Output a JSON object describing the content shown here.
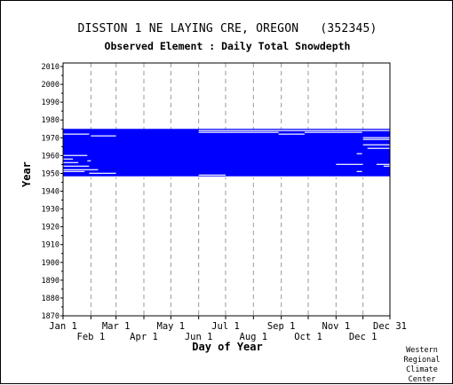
{
  "title": "DISSTON 1 NE LAYING CRE, OREGON   (352345)",
  "subtitle": "Observed Element : Daily Total Snowdepth",
  "credit": [
    "Western",
    "Regional",
    "Climate",
    "Center"
  ],
  "colors": {
    "data": "#0000ff",
    "grid": "#999999",
    "axis": "#000000"
  },
  "chart_data": {
    "type": "bar",
    "xlabel": "Day of Year",
    "ylabel": "Year",
    "xlim": [
      1,
      365
    ],
    "ylim": [
      1870,
      2012
    ],
    "yticks": [
      1870,
      1880,
      1890,
      1900,
      1910,
      1920,
      1930,
      1940,
      1950,
      1960,
      1970,
      1980,
      1990,
      2000,
      2010
    ],
    "xticks_top": [
      {
        "label": "Jan 1",
        "day": 1
      },
      {
        "label": "Mar 1",
        "day": 60
      },
      {
        "label": "May 1",
        "day": 121
      },
      {
        "label": "Jul 1",
        "day": 182
      },
      {
        "label": "Sep 1",
        "day": 244
      },
      {
        "label": "Nov 1",
        "day": 305
      },
      {
        "label": "Dec 31",
        "day": 365
      }
    ],
    "xticks_bottom": [
      {
        "label": "Feb 1",
        "day": 32
      },
      {
        "label": "Apr 1",
        "day": 91
      },
      {
        "label": "Jun 1",
        "day": 152
      },
      {
        "label": "Aug 1",
        "day": 213
      },
      {
        "label": "Oct 1",
        "day": 274
      },
      {
        "label": "Dec 1",
        "day": 335
      }
    ],
    "grid_days": [
      32,
      60,
      91,
      121,
      152,
      182,
      213,
      244,
      274,
      305,
      335
    ],
    "coverage": {
      "year_start": 1948,
      "year_end": 1975,
      "day_start": 1,
      "day_end": 365
    },
    "gaps": [
      {
        "year": 1974,
        "day_start": 152,
        "day_end": 365
      },
      {
        "year": 1973,
        "day_start": 152,
        "day_end": 241
      },
      {
        "year": 1973,
        "day_start": 270,
        "day_end": 334
      },
      {
        "year": 1972,
        "day_start": 1,
        "day_end": 30
      },
      {
        "year": 1972,
        "day_start": 241,
        "day_end": 270
      },
      {
        "year": 1971,
        "day_start": 32,
        "day_end": 60
      },
      {
        "year": 1970,
        "day_start": 335,
        "day_end": 365
      },
      {
        "year": 1969,
        "day_start": 335,
        "day_end": 365
      },
      {
        "year": 1966,
        "day_start": 335,
        "day_end": 365
      },
      {
        "year": 1964,
        "day_start": 340,
        "day_end": 365
      },
      {
        "year": 1961,
        "day_start": 328,
        "day_end": 334
      },
      {
        "year": 1960,
        "day_start": 1,
        "day_end": 28
      },
      {
        "year": 1958,
        "day_start": 1,
        "day_end": 12
      },
      {
        "year": 1957,
        "day_start": 28,
        "day_end": 32
      },
      {
        "year": 1956,
        "day_start": 1,
        "day_end": 18
      },
      {
        "year": 1955,
        "day_start": 305,
        "day_end": 335
      },
      {
        "year": 1955,
        "day_start": 350,
        "day_end": 365
      },
      {
        "year": 1954,
        "day_start": 1,
        "day_end": 30
      },
      {
        "year": 1954,
        "day_start": 358,
        "day_end": 365
      },
      {
        "year": 1952,
        "day_start": 1,
        "day_end": 40
      },
      {
        "year": 1951,
        "day_start": 1,
        "day_end": 25
      },
      {
        "year": 1951,
        "day_start": 328,
        "day_end": 334
      },
      {
        "year": 1950,
        "day_start": 30,
        "day_end": 60
      },
      {
        "year": 1949,
        "day_start": 152,
        "day_end": 182
      },
      {
        "year": 1948,
        "day_start": 1,
        "day_end": 365
      }
    ]
  }
}
